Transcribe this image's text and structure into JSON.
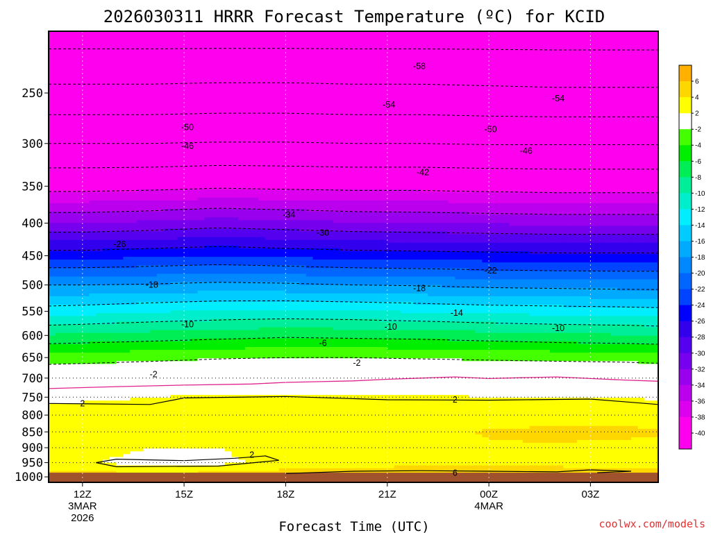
{
  "chart_data": {
    "type": "heatmap",
    "title": "2026030311 HRRR Forecast Temperature (ºC) for KCID",
    "xlabel": "Forecast Time (UTC)",
    "ylabel": "",
    "credit": "coolwx.com/models",
    "y_axis": {
      "scale": "log-pressure",
      "inverted": true,
      "range": [
        200,
        1020
      ],
      "ticks": [
        250,
        300,
        350,
        400,
        450,
        500,
        550,
        600,
        650,
        700,
        750,
        800,
        850,
        900,
        950,
        1000
      ],
      "tick_labels": [
        "250",
        "300",
        "350",
        "400",
        "450",
        "500",
        "550",
        "600",
        "650",
        "700",
        "750",
        "800",
        "850",
        "900",
        "950",
        "1000"
      ]
    },
    "x_axis": {
      "range_hours": [
        -1,
        17
      ],
      "ticks": [
        {
          "hour": 0,
          "lines": [
            "12Z",
            "3MAR",
            "2026"
          ]
        },
        {
          "hour": 3,
          "lines": [
            "15Z"
          ]
        },
        {
          "hour": 6,
          "lines": [
            "18Z"
          ]
        },
        {
          "hour": 9,
          "lines": [
            "21Z"
          ]
        },
        {
          "hour": 12,
          "lines": [
            "00Z",
            "4MAR"
          ]
        },
        {
          "hour": 15,
          "lines": [
            "03Z"
          ]
        }
      ]
    },
    "grid": true,
    "dotted_pressure_levels": [
      700,
      750,
      800,
      850,
      900,
      950
    ],
    "x_hours": [
      -1,
      0,
      2,
      4,
      6,
      8,
      10,
      12,
      14,
      16,
      17
    ],
    "profiles_level_p": [
      1000,
      950,
      900,
      850,
      800,
      750,
      700,
      650,
      600,
      550,
      500,
      450,
      400,
      350,
      300,
      250,
      200
    ],
    "profiles_temp_c": [
      [
        5.2,
        2.8,
        3.2,
        3.0,
        2.6,
        1.6,
        0.0,
        -3.0,
        -7.8,
        -13.0,
        -18.0,
        -24.8,
        -32.0,
        -39.0,
        -46.0,
        -53.0,
        -60.0
      ],
      [
        5.0,
        2.4,
        3.0,
        3.0,
        2.6,
        1.8,
        0.2,
        -2.9,
        -7.6,
        -12.8,
        -18.0,
        -24.8,
        -32.0,
        -39.0,
        -46.0,
        -53.0,
        -60.0
      ],
      [
        5.0,
        1.0,
        2.0,
        2.0,
        2.4,
        2.0,
        0.6,
        -2.6,
        -7.2,
        -12.2,
        -17.8,
        -24.4,
        -31.6,
        -38.8,
        -46.0,
        -53.0,
        -60.0
      ],
      [
        5.2,
        1.6,
        2.0,
        2.2,
        2.6,
        2.2,
        0.8,
        -2.2,
        -6.8,
        -11.8,
        -17.4,
        -24.0,
        -31.0,
        -38.4,
        -45.8,
        -52.8,
        -60.0
      ],
      [
        5.6,
        2.6,
        2.8,
        2.6,
        2.8,
        2.2,
        1.0,
        -2.0,
        -6.4,
        -11.6,
        -17.6,
        -24.4,
        -31.4,
        -38.6,
        -45.8,
        -52.8,
        -60.0
      ],
      [
        6.0,
        3.0,
        3.2,
        3.0,
        2.8,
        2.2,
        1.0,
        -2.0,
        -6.6,
        -11.8,
        -18.0,
        -24.8,
        -31.8,
        -38.8,
        -46.0,
        -53.0,
        -60.0
      ],
      [
        6.2,
        3.2,
        3.4,
        3.4,
        2.8,
        2.2,
        1.0,
        -2.2,
        -6.8,
        -12.2,
        -18.2,
        -25.0,
        -32.0,
        -38.8,
        -46.0,
        -53.0,
        -60.0
      ],
      [
        6.2,
        3.4,
        3.8,
        4.2,
        3.0,
        2.0,
        0.8,
        -2.4,
        -7.2,
        -12.6,
        -18.6,
        -25.2,
        -32.2,
        -39.0,
        -46.2,
        -53.2,
        -60.0
      ],
      [
        6.0,
        3.2,
        3.8,
        4.4,
        3.2,
        2.0,
        0.8,
        -2.6,
        -7.6,
        -12.8,
        -18.8,
        -25.4,
        -32.4,
        -39.2,
        -46.2,
        -53.4,
        -60.0
      ],
      [
        5.8,
        3.0,
        3.6,
        4.4,
        3.2,
        2.0,
        0.8,
        -2.8,
        -7.8,
        -13.0,
        -19.0,
        -25.4,
        -32.4,
        -39.2,
        -46.2,
        -53.4,
        -60.0
      ],
      [
        5.6,
        3.0,
        3.4,
        4.2,
        3.0,
        1.8,
        0.6,
        -3.0,
        -8.0,
        -13.2,
        -19.0,
        -25.4,
        -32.4,
        -39.2,
        -46.2,
        -53.4,
        -60.0
      ]
    ],
    "contour_labels": [
      {
        "text": "-58",
        "x_hour": 9.95,
        "p": 227
      },
      {
        "text": "-54",
        "x_hour": 9.05,
        "p": 261
      },
      {
        "text": "-54",
        "x_hour": 14.05,
        "p": 255
      },
      {
        "text": "-50",
        "x_hour": 3.1,
        "p": 283
      },
      {
        "text": "-50",
        "x_hour": 12.05,
        "p": 285
      },
      {
        "text": "-46",
        "x_hour": 3.1,
        "p": 303
      },
      {
        "text": "-46",
        "x_hour": 13.1,
        "p": 308
      },
      {
        "text": "-42",
        "x_hour": 10.05,
        "p": 333
      },
      {
        "text": "-34",
        "x_hour": 6.1,
        "p": 388
      },
      {
        "text": "-30",
        "x_hour": 7.1,
        "p": 414
      },
      {
        "text": "-26",
        "x_hour": 1.1,
        "p": 432
      },
      {
        "text": "-22",
        "x_hour": 12.05,
        "p": 475
      },
      {
        "text": "-18",
        "x_hour": 2.05,
        "p": 500
      },
      {
        "text": "-18",
        "x_hour": 9.95,
        "p": 506
      },
      {
        "text": "-14",
        "x_hour": 11.05,
        "p": 553
      },
      {
        "text": "-10",
        "x_hour": 3.1,
        "p": 577
      },
      {
        "text": "-10",
        "x_hour": 9.1,
        "p": 582
      },
      {
        "text": "-10",
        "x_hour": 14.05,
        "p": 585
      },
      {
        "text": "-6",
        "x_hour": 7.1,
        "p": 617
      },
      {
        "text": "-2",
        "x_hour": 8.1,
        "p": 663
      },
      {
        "text": "-2",
        "x_hour": 2.1,
        "p": 691
      },
      {
        "text": "2",
        "x_hour": 0.0,
        "p": 767
      },
      {
        "text": "2",
        "x_hour": 11.0,
        "p": 757
      },
      {
        "text": "2",
        "x_hour": 5.0,
        "p": 924
      },
      {
        "text": "6",
        "x_hour": 11.0,
        "p": 986
      }
    ],
    "freezing_line": {
      "color": "#e0208a",
      "x_hours": [
        -1,
        1,
        3,
        5,
        6,
        7,
        8,
        9,
        10,
        11,
        12,
        13,
        14,
        15,
        16,
        17
      ],
      "p": [
        727,
        722,
        718,
        715,
        711,
        709,
        707,
        703,
        700,
        697,
        701,
        699,
        697,
        701,
        705,
        708
      ]
    },
    "colorbar": {
      "levels": [
        8,
        6,
        4,
        2,
        -2,
        -4,
        -6,
        -8,
        -10,
        -12,
        -14,
        -16,
        -18,
        -20,
        -22,
        -24,
        -26,
        -28,
        -30,
        -32,
        -34,
        -36,
        -38,
        -40,
        -62
      ],
      "tick_labels": [
        "6",
        "4",
        "2",
        "-2",
        "-4",
        "-6",
        "-8",
        "-10",
        "-12",
        "-14",
        "-16",
        "-18",
        "-20",
        "-22",
        "-24",
        "-26",
        "-28",
        "-30",
        "-32",
        "-34",
        "-36",
        "-38",
        "-40"
      ],
      "colors": [
        "#ffb000",
        "#ffd700",
        "#ffff00",
        "#ffffff",
        "#44ff00",
        "#00ee00",
        "#00ee55",
        "#00ee99",
        "#00eecc",
        "#00eeff",
        "#00ccff",
        "#00aaff",
        "#0088ff",
        "#0066ff",
        "#0044ff",
        "#0000ff",
        "#3300ee",
        "#5500ee",
        "#7700ee",
        "#9900ee",
        "#bb00ee",
        "#dd00ee",
        "#ff00ee",
        "#ff00ee"
      ]
    },
    "surface_band_color": "#a0522d"
  }
}
